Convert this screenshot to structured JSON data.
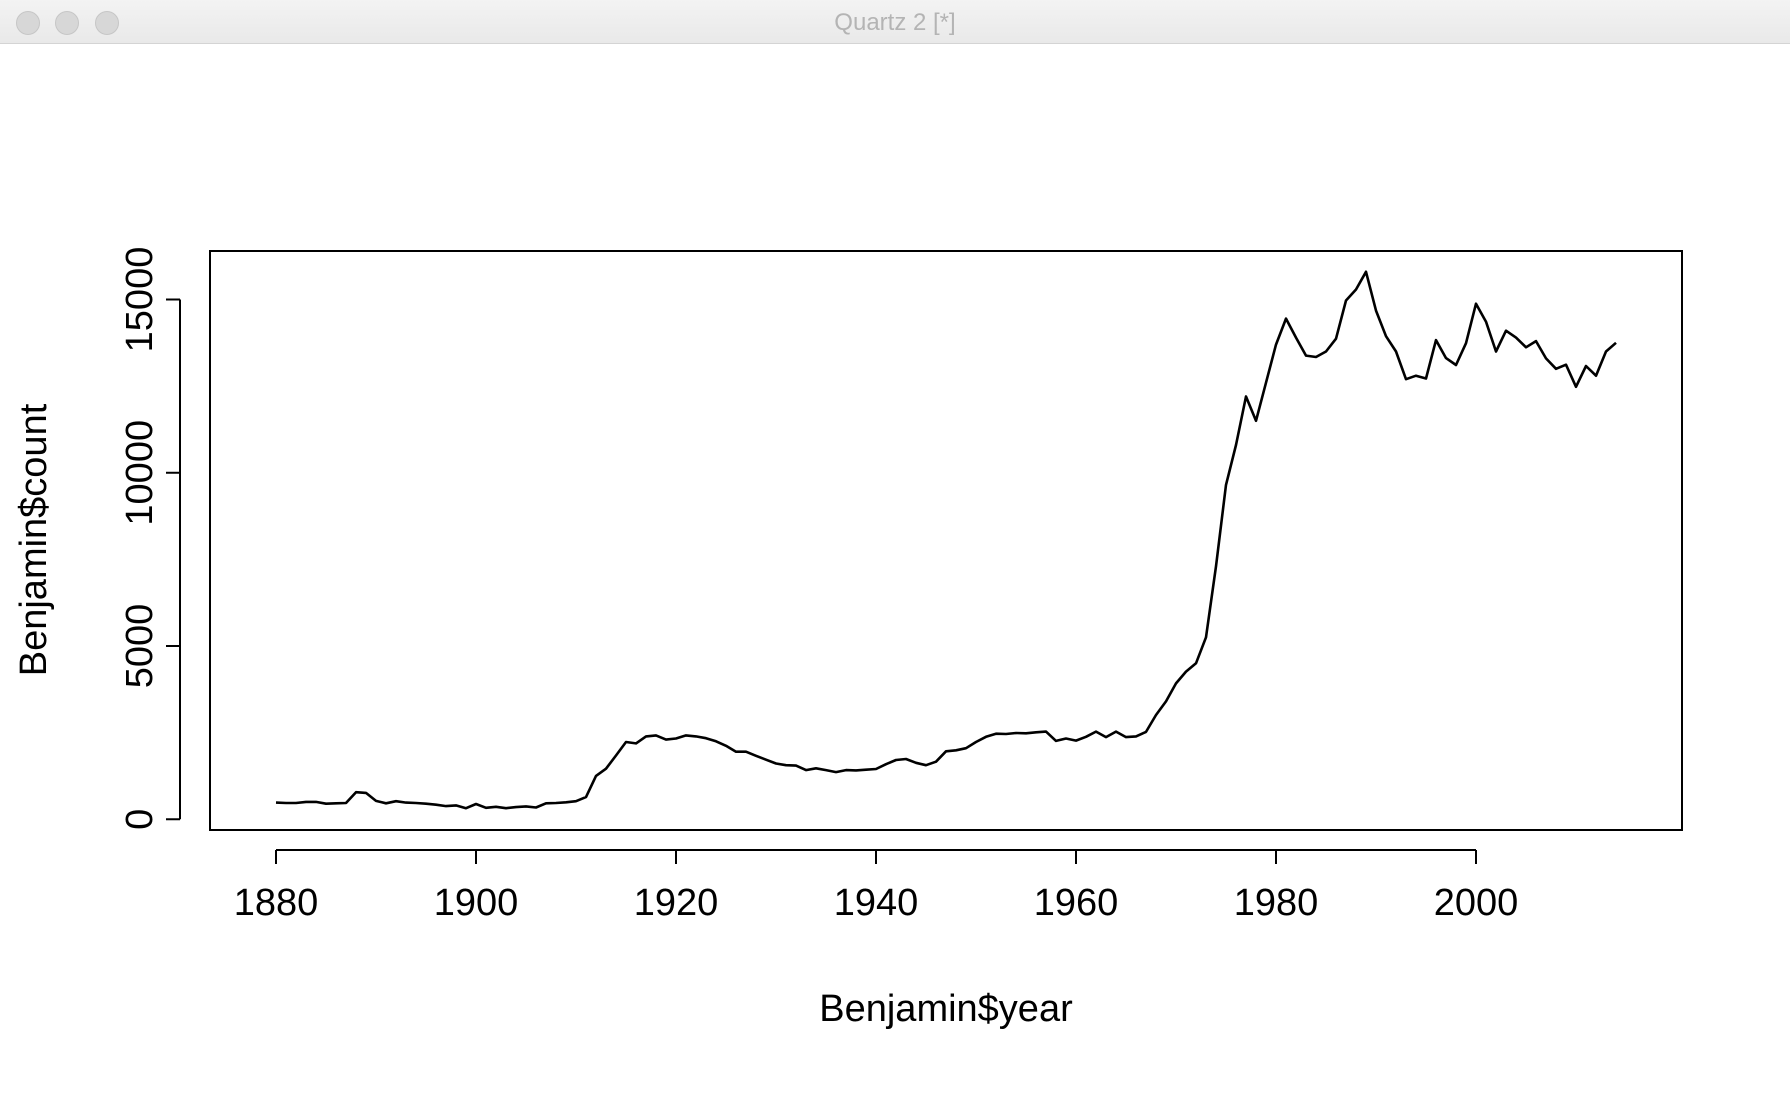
{
  "window": {
    "title": "Quartz 2 [*]",
    "buttons": [
      "close",
      "minimize",
      "zoom"
    ]
  },
  "chart_data": {
    "type": "line",
    "title": "",
    "xlabel": "Benjamin$year",
    "ylabel": "Benjamin$count",
    "xlim": [
      1873.4,
      2020.6
    ],
    "ylim": [
      -310,
      16400
    ],
    "x_ticks": [
      "1880",
      "1900",
      "1920",
      "1940",
      "1960",
      "1980",
      "2000"
    ],
    "y_ticks": [
      "0",
      "5000",
      "10000",
      "15000"
    ],
    "line_color": "#000000",
    "grid": false,
    "series": [
      {
        "x": [
          1880,
          1881,
          1882,
          1883,
          1884,
          1885,
          1886,
          1887,
          1888,
          1889,
          1890,
          1891,
          1892,
          1893,
          1894,
          1895,
          1896,
          1897,
          1898,
          1899,
          1900,
          1901,
          1902,
          1903,
          1904,
          1905,
          1906,
          1907,
          1908,
          1909,
          1910,
          1911,
          1912,
          1913,
          1914,
          1915,
          1916,
          1917,
          1918,
          1919,
          1920,
          1921,
          1922,
          1923,
          1924,
          1925,
          1926,
          1927,
          1928,
          1929,
          1930,
          1931,
          1932,
          1933,
          1934,
          1935,
          1936,
          1937,
          1938,
          1939,
          1940,
          1941,
          1942,
          1943,
          1944,
          1945,
          1946,
          1947,
          1948,
          1949,
          1950,
          1951,
          1952,
          1953,
          1954,
          1955,
          1956,
          1957,
          1958,
          1959,
          1960,
          1961,
          1962,
          1963,
          1964,
          1965,
          1966,
          1967,
          1968,
          1969,
          1970,
          1971,
          1972,
          1973,
          1974,
          1975,
          1976,
          1977,
          1978,
          1979,
          1980,
          1981,
          1982,
          1983,
          1984,
          1985,
          1986,
          1987,
          1988,
          1989,
          1990,
          1991,
          1992,
          1993,
          1994,
          1995,
          1996,
          1997,
          1998,
          1999,
          2000,
          2001,
          2002,
          2003,
          2004,
          2005,
          2006,
          2007,
          2008,
          2009,
          2010,
          2011,
          2012,
          2013,
          2014
        ],
        "values": [
          480,
          470,
          470,
          500,
          500,
          450,
          460,
          470,
          780,
          760,
          530,
          460,
          520,
          480,
          470,
          450,
          420,
          380,
          400,
          320,
          440,
          330,
          360,
          320,
          350,
          370,
          340,
          460,
          470,
          490,
          520,
          640,
          1250,
          1460,
          1840,
          2230,
          2190,
          2390,
          2420,
          2300,
          2330,
          2420,
          2390,
          2340,
          2250,
          2120,
          1950,
          1950,
          1830,
          1720,
          1610,
          1560,
          1550,
          1420,
          1470,
          1420,
          1360,
          1420,
          1410,
          1430,
          1450,
          1590,
          1710,
          1740,
          1630,
          1560,
          1660,
          1960,
          1990,
          2050,
          2230,
          2380,
          2470,
          2460,
          2490,
          2480,
          2510,
          2530,
          2260,
          2330,
          2270,
          2380,
          2530,
          2370,
          2530,
          2370,
          2390,
          2520,
          3010,
          3400,
          3920,
          4260,
          4500,
          5250,
          7300,
          9650,
          10800,
          12200,
          11500,
          12600,
          13700,
          14450,
          13900,
          13380,
          13340,
          13500,
          13870,
          14970,
          15290,
          15800,
          14680,
          13940,
          13500,
          12700,
          12800,
          12720,
          13830,
          13310,
          13110,
          13740,
          14880,
          14360,
          13500,
          14100,
          13900,
          13620,
          13800,
          13300,
          13000,
          13120,
          12480,
          13080,
          12800,
          13500,
          13750
        ]
      }
    ]
  }
}
